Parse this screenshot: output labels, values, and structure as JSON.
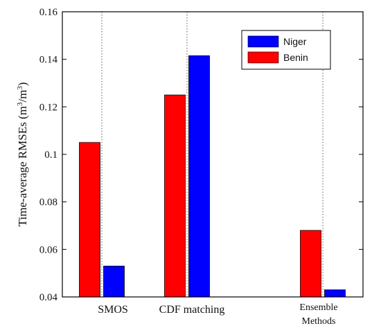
{
  "chart_data": {
    "type": "bar",
    "categories": [
      "SMOS",
      "CDF matching",
      "Ensemble Methods"
    ],
    "series": [
      {
        "name": "Benin",
        "values": [
          0.105,
          0.125,
          0.068
        ]
      },
      {
        "name": "Niger",
        "values": [
          0.053,
          0.1415,
          0.043
        ]
      }
    ],
    "series_colors": {
      "Niger": "#0000ff",
      "Benin": "#ff0000"
    },
    "legend_order": [
      "Niger",
      "Benin"
    ],
    "legend_position": "top-right",
    "ylabel_main": "Time-average RMSEs (m",
    "ylabel_sup1": "3",
    "ylabel_mid": "/m",
    "ylabel_sup2": "3",
    "ylabel_end": ")",
    "ylim": [
      0.04,
      0.16
    ],
    "yticks": [
      "0.04",
      "0.06",
      "0.08",
      "0.1",
      "0.12",
      "0.14",
      "0.16"
    ],
    "category_label_lines": [
      [
        "SMOS"
      ],
      [
        "CDF matching"
      ],
      [
        "Ensemble",
        "Methods"
      ]
    ],
    "grid": "vertical dotted lines at category centers"
  }
}
